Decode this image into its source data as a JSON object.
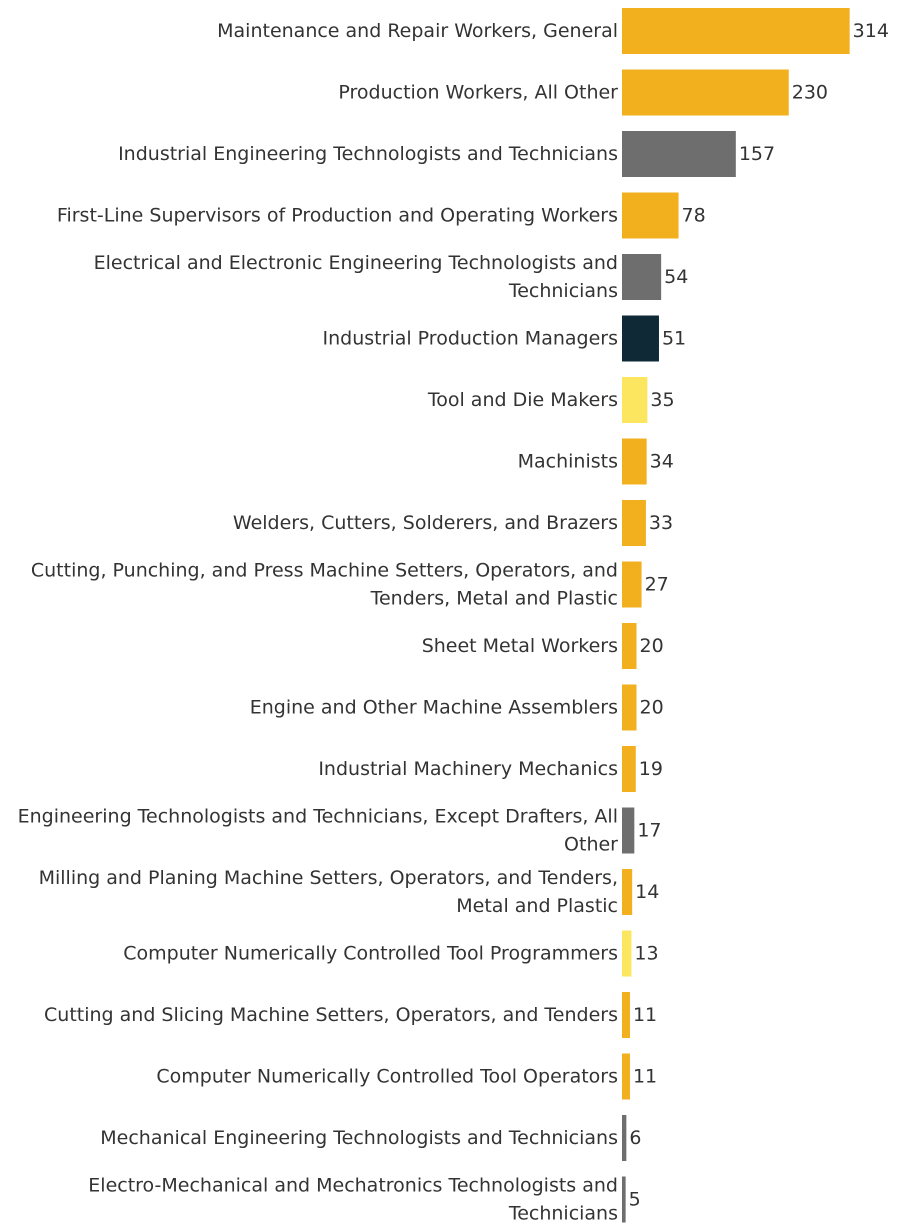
{
  "chart_data": {
    "type": "bar",
    "orientation": "horizontal",
    "title": "",
    "xlabel": "",
    "ylabel": "",
    "grid": false,
    "legend": "none",
    "categories": [
      [
        "Maintenance and Repair Workers, General"
      ],
      [
        "Production Workers, All Other"
      ],
      [
        "Industrial Engineering Technologists and Technicians"
      ],
      [
        "First-Line Supervisors of Production and Operating Workers"
      ],
      [
        "Electrical and Electronic Engineering Technologists and",
        "Technicians"
      ],
      [
        "Industrial Production Managers"
      ],
      [
        "Tool and Die Makers"
      ],
      [
        "Machinists"
      ],
      [
        "Welders, Cutters, Solderers, and Brazers"
      ],
      [
        "Cutting, Punching, and Press Machine Setters, Operators, and",
        "Tenders, Metal and Plastic"
      ],
      [
        "Sheet Metal Workers"
      ],
      [
        "Engine and Other Machine Assemblers"
      ],
      [
        "Industrial Machinery Mechanics"
      ],
      [
        "Engineering Technologists and Technicians, Except Drafters, All",
        "Other"
      ],
      [
        "Milling and Planing Machine Setters, Operators, and Tenders,",
        "Metal and Plastic"
      ],
      [
        "Computer Numerically Controlled Tool Programmers"
      ],
      [
        "Cutting and Slicing Machine Setters, Operators, and Tenders"
      ],
      [
        "Computer Numerically Controlled Tool Operators"
      ],
      [
        "Mechanical Engineering Technologists and Technicians"
      ],
      [
        "Electro-Mechanical and Mechatronics Technologists and",
        "Technicians"
      ]
    ],
    "values": [
      314,
      230,
      157,
      78,
      54,
      51,
      35,
      34,
      33,
      27,
      20,
      20,
      19,
      17,
      14,
      13,
      11,
      11,
      6,
      5
    ],
    "value_labels": [
      "314",
      "230",
      "157",
      "78",
      "54",
      "51",
      "35",
      "34",
      "33",
      "27",
      "20",
      "20",
      "19",
      "17",
      "14",
      "13",
      "11",
      "11",
      "6",
      "5"
    ],
    "bar_colors": [
      "#F2B01E",
      "#F2B01E",
      "#6E6E6E",
      "#F2B01E",
      "#6E6E6E",
      "#0F2A36",
      "#FCE55F",
      "#F2B01E",
      "#F2B01E",
      "#F2B01E",
      "#F2B01E",
      "#F2B01E",
      "#F2B01E",
      "#6E6E6E",
      "#F2B01E",
      "#FCE55F",
      "#F2B01E",
      "#F2B01E",
      "#6E6E6E",
      "#6E6E6E"
    ],
    "xlim": [
      0,
      320
    ]
  },
  "colors": {
    "text": "#333333",
    "background": "#ffffff"
  }
}
